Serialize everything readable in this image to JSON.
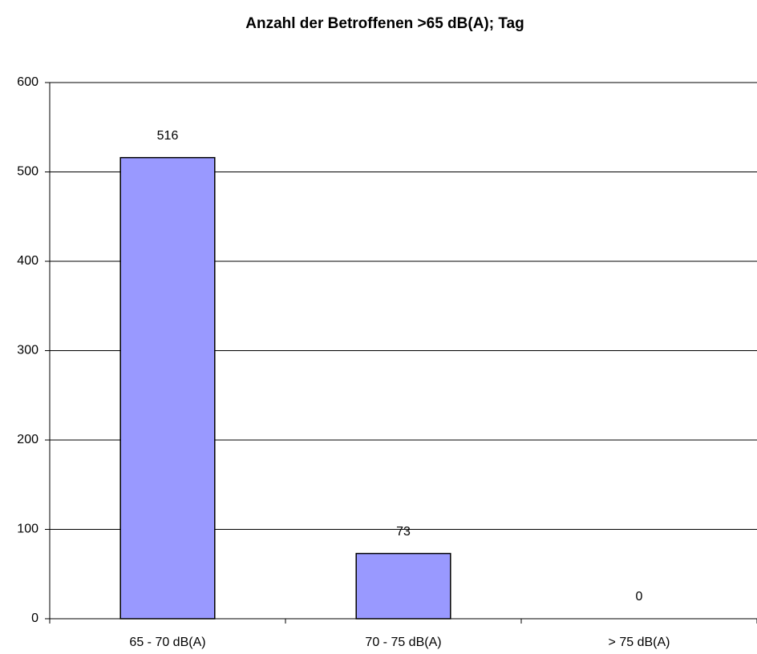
{
  "chart_data": {
    "type": "bar",
    "title": "Anzahl der Betroffenen >65 dB(A); Tag",
    "categories": [
      "65 - 70 dB(A)",
      "70 - 75 dB(A)",
      "> 75 dB(A)"
    ],
    "values": [
      516,
      73,
      0
    ],
    "color": "#9999ff",
    "ylim": [
      0,
      600
    ],
    "yticks": [
      0,
      100,
      200,
      300,
      400,
      500,
      600
    ],
    "grid": true
  }
}
